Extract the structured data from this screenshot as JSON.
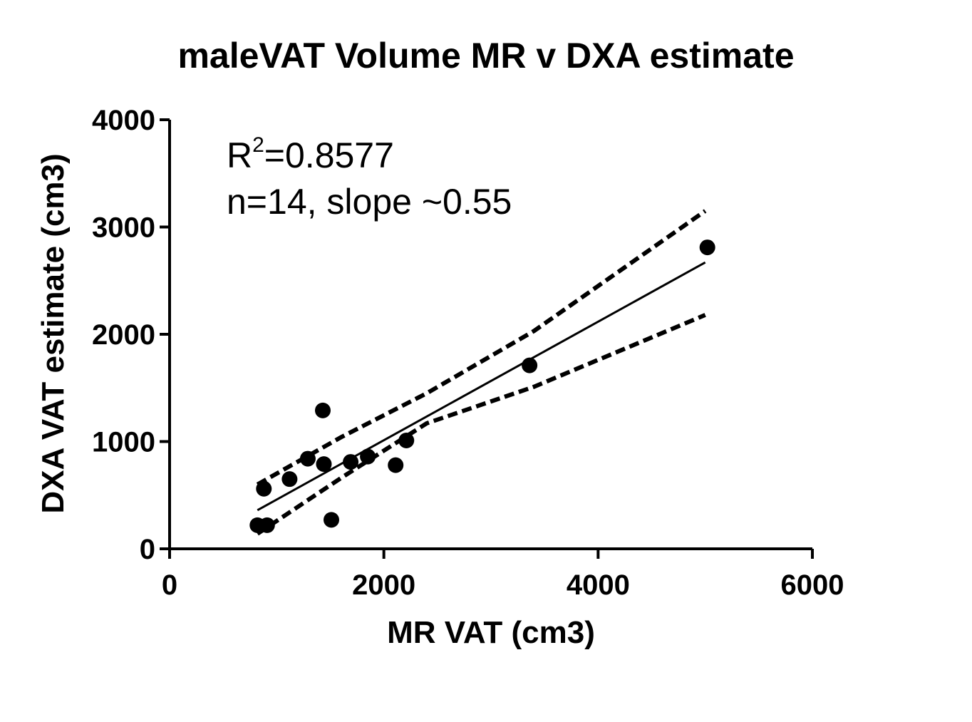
{
  "chart_data": {
    "type": "scatter",
    "title": "maleVAT Volume MR v DXA estimate",
    "xlabel": "MR VAT (cm3)",
    "ylabel": "DXA VAT estimate (cm3)",
    "xlim": [
      0,
      6000
    ],
    "ylim": [
      0,
      4000
    ],
    "x_ticks": [
      0,
      2000,
      4000,
      6000
    ],
    "y_ticks": [
      0,
      1000,
      2000,
      3000,
      4000
    ],
    "x_tick_labels": [
      "0",
      "2000",
      "4000",
      "6000"
    ],
    "y_tick_labels": [
      "0",
      "1000",
      "2000",
      "3000",
      "4000"
    ],
    "grid": false,
    "points": [
      {
        "x": 820,
        "y": 220
      },
      {
        "x": 880,
        "y": 560
      },
      {
        "x": 910,
        "y": 220
      },
      {
        "x": 1120,
        "y": 650
      },
      {
        "x": 1290,
        "y": 840
      },
      {
        "x": 1430,
        "y": 1290
      },
      {
        "x": 1440,
        "y": 790
      },
      {
        "x": 1510,
        "y": 270
      },
      {
        "x": 1690,
        "y": 810
      },
      {
        "x": 1850,
        "y": 860
      },
      {
        "x": 2110,
        "y": 780
      },
      {
        "x": 2210,
        "y": 1010
      },
      {
        "x": 3360,
        "y": 1710
      },
      {
        "x": 5020,
        "y": 2810
      }
    ],
    "regression_line": {
      "x": [
        820,
        5000
      ],
      "y": [
        360,
        2670
      ]
    },
    "confidence_band": {
      "upper": {
        "x": [
          820,
          1600,
          2400,
          3400,
          5000
        ],
        "y": [
          600,
          1040,
          1450,
          2030,
          3150
        ]
      },
      "lower": {
        "x": [
          820,
          1600,
          2400,
          3400,
          5000
        ],
        "y": [
          140,
          660,
          1170,
          1510,
          2180
        ]
      }
    },
    "annotations": {
      "r2_base": "R",
      "r2_exp": "2",
      "r2_value": "=0.8577",
      "stats": "n=14, slope ~0.55"
    }
  }
}
